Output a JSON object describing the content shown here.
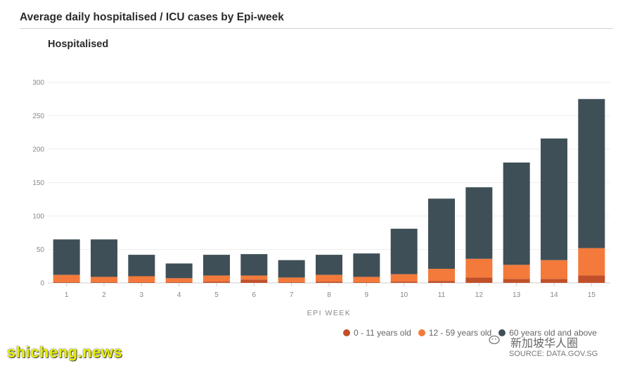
{
  "header": {
    "title": "Average daily hospitalised / ICU cases by Epi-week",
    "subtitle": "Hospitalised"
  },
  "colors": {
    "age_0_11": "#c0502a",
    "age_12_59": "#f47a3b",
    "age_60_plus": "#3e4f57",
    "grid": "#eeeeee",
    "axis_text": "#888888"
  },
  "chart_data": {
    "type": "bar",
    "stacked": true,
    "title": "Hospitalised",
    "xlabel": "EPI WEEK",
    "ylabel": "",
    "ylim": [
      0,
      300
    ],
    "yticks": [
      0,
      50,
      100,
      150,
      200,
      250,
      300
    ],
    "categories": [
      "1",
      "2",
      "3",
      "4",
      "5",
      "6",
      "7",
      "8",
      "9",
      "10",
      "11",
      "12",
      "13",
      "14",
      "15"
    ],
    "series": [
      {
        "name": "0 - 11 years old",
        "values": [
          1,
          1,
          1,
          1,
          2,
          5,
          1,
          2,
          1,
          2,
          3,
          8,
          6,
          6,
          11
        ]
      },
      {
        "name": "12 - 59 years old",
        "values": [
          11,
          8,
          9,
          6,
          9,
          6,
          7,
          10,
          8,
          11,
          18,
          28,
          21,
          28,
          41
        ]
      },
      {
        "name": "60 years old and above",
        "values": [
          53,
          56,
          32,
          22,
          31,
          32,
          26,
          30,
          35,
          68,
          105,
          107,
          153,
          182,
          223
        ]
      }
    ],
    "grid": true,
    "legend_position": "bottom-right"
  },
  "legend": {
    "items": [
      {
        "label": "0 - 11 years old",
        "color": "#c0502a"
      },
      {
        "label": "12 - 59 years old",
        "color": "#f47a3b"
      },
      {
        "label": "60 years old and above",
        "color": "#3e4f57"
      }
    ]
  },
  "watermarks": {
    "left": "shicheng.news",
    "right": "新加坡华人圈"
  },
  "source": "SOURCE: DATA.GOV.SG"
}
